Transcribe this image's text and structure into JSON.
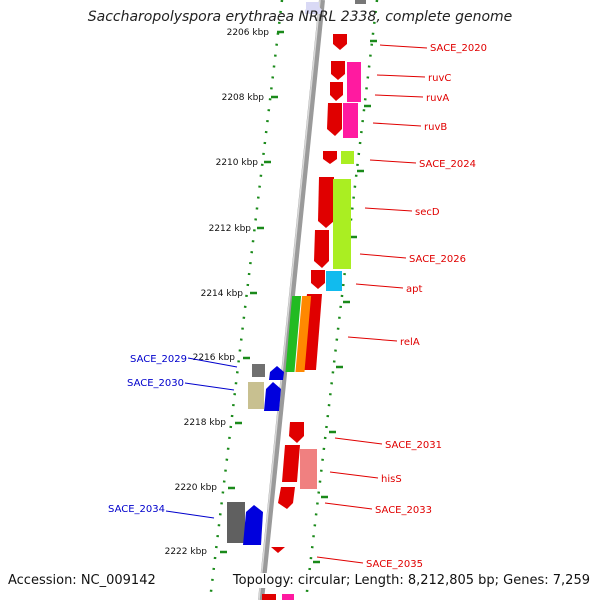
{
  "title": "Saccharopolyspora erythraea NRRL 2338, complete genome",
  "accession_text": "Accession: NC_009142",
  "topology_text": "Topology: circular; Length: 8,212,805 bp; Genes: 7,259",
  "kbp_labels": [
    "2206 kbp",
    "2208 kbp",
    "2210 kbp",
    "2212 kbp",
    "2214 kbp",
    "2216 kbp",
    "2218 kbp",
    "2220 kbp",
    "2222 kbp"
  ],
  "right_genes": [
    {
      "name": "SACE_2020",
      "color": "#e00000"
    },
    {
      "name": "ruvC",
      "color": "#e00000"
    },
    {
      "name": "ruvA",
      "color": "#e00000"
    },
    {
      "name": "ruvB",
      "color": "#e00000"
    },
    {
      "name": "SACE_2024",
      "color": "#e00000"
    },
    {
      "name": "secD",
      "color": "#e00000"
    },
    {
      "name": "SACE_2026",
      "color": "#e00000"
    },
    {
      "name": "apt",
      "color": "#e00000"
    },
    {
      "name": "relA",
      "color": "#e00000"
    },
    {
      "name": "SACE_2031",
      "color": "#e00000"
    },
    {
      "name": "hisS",
      "color": "#e00000"
    },
    {
      "name": "SACE_2033",
      "color": "#e00000"
    },
    {
      "name": "SACE_2035",
      "color": "#e00000"
    }
  ],
  "left_genes": [
    {
      "name": "SACE_2029",
      "color": "#0000cc"
    },
    {
      "name": "SACE_2030",
      "color": "#0000cc"
    },
    {
      "name": "SACE_2034",
      "color": "#0000cc"
    }
  ]
}
